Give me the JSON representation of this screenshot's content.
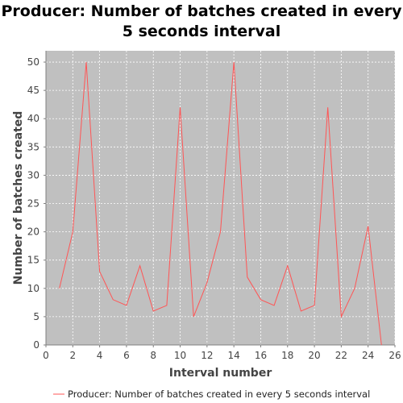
{
  "chart_data": {
    "type": "line",
    "title": "Producer: Number of batches created in every 5 seconds interval",
    "xlabel": "Interval number",
    "ylabel": "Number of batches created",
    "xlim": [
      0,
      26
    ],
    "ylim": [
      0,
      52
    ],
    "xticks": [
      0,
      2,
      4,
      6,
      8,
      10,
      12,
      14,
      16,
      18,
      20,
      22,
      24,
      26
    ],
    "yticks": [
      0,
      5,
      10,
      15,
      20,
      25,
      30,
      35,
      40,
      45,
      50
    ],
    "grid": true,
    "legend_position": "bottom",
    "colors": {
      "series": "#ff5555",
      "plot_background": "#c0c0c0",
      "grid": "#ffffff"
    },
    "series": [
      {
        "name": "Producer: Number of batches created in every 5 seconds interval",
        "x": [
          1,
          2,
          3,
          4,
          5,
          6,
          7,
          8,
          9,
          10,
          11,
          12,
          13,
          14,
          15,
          16,
          17,
          18,
          19,
          20,
          21,
          22,
          23,
          24,
          25
        ],
        "y": [
          10,
          20,
          50,
          13,
          8,
          7,
          14,
          6,
          7,
          42,
          5,
          11,
          20,
          50,
          12,
          8,
          7,
          14,
          6,
          7,
          42,
          5,
          10,
          21,
          0
        ]
      }
    ]
  }
}
